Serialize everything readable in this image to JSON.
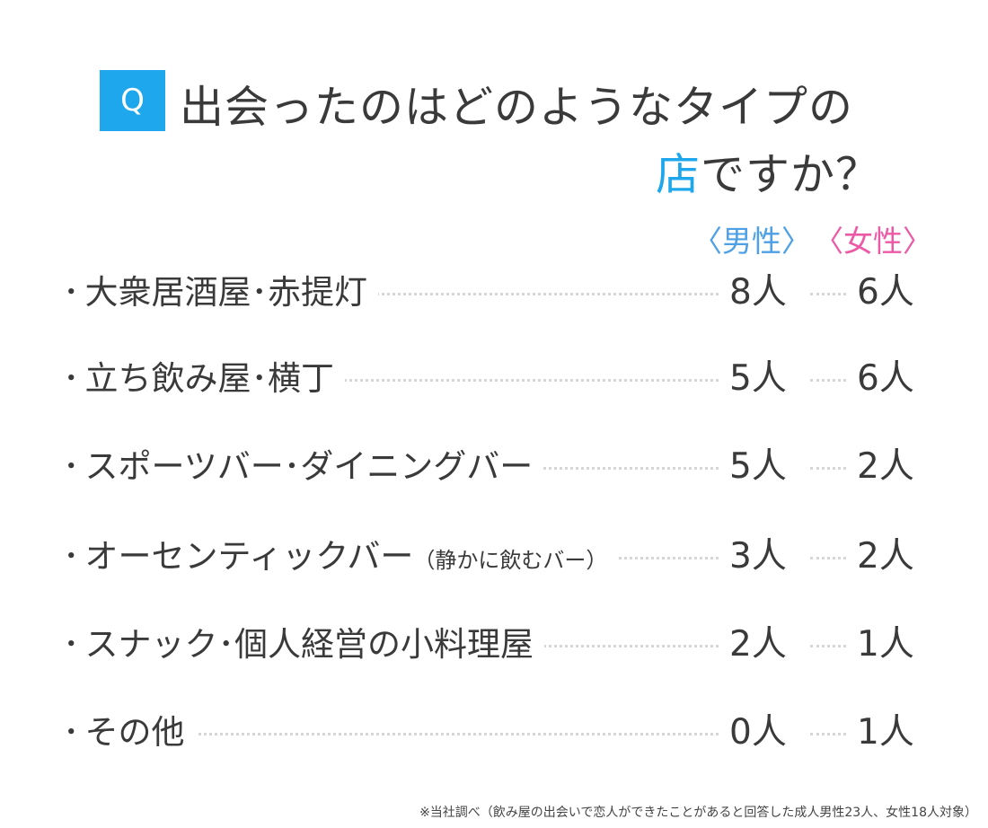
{
  "question": {
    "badge": "Q",
    "line1": "出会ったのはどのようなタイプの",
    "line2_accent": "店",
    "line2_rest": "ですか？"
  },
  "headers": {
    "male": "〈男性〉",
    "female": "〈女性〉"
  },
  "colors": {
    "accent": "#1ea7ec",
    "male": "#4da0e6",
    "female": "#ec5aa6",
    "text": "#3a3a3a"
  },
  "chart_data": {
    "type": "table",
    "columns": [
      "〈男性〉",
      "〈女性〉"
    ],
    "rows": [
      {
        "label": "大衆居酒屋･赤提灯",
        "sub": "",
        "male": "8人",
        "female": "6人"
      },
      {
        "label": "立ち飲み屋･横丁",
        "sub": "",
        "male": "5人",
        "female": "6人"
      },
      {
        "label": "スポーツバー･ダイニングバー",
        "sub": "",
        "male": "5人",
        "female": "2人"
      },
      {
        "label": "オーセンティックバー",
        "sub": "（静かに飲むバー）",
        "male": "3人",
        "female": "2人"
      },
      {
        "label": "スナック･個人経営の小料理屋",
        "sub": "",
        "male": "2人",
        "female": "1人"
      },
      {
        "label": "その他",
        "sub": "",
        "male": "0人",
        "female": "1人"
      }
    ],
    "values": {
      "male": [
        8,
        5,
        5,
        3,
        2,
        0
      ],
      "female": [
        6,
        6,
        2,
        2,
        1,
        1
      ]
    }
  },
  "bullet": "･",
  "footnote": "※当社調べ（飲み屋の出会いで恋人ができたことがあると回答した成人男性23人、女性18人対象）"
}
